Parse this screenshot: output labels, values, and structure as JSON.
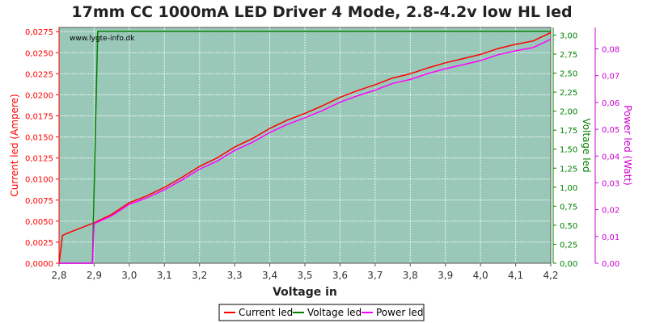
{
  "chart_data": {
    "type": "line",
    "title": "17mm CC 1000mA LED Driver 4 Mode, 2.8-4.2v low HL led",
    "watermark": "www.lygte-info.dk",
    "xlabel": "Voltage in",
    "ylabel_left": "Current led (Ampere)",
    "ylabel_right1": "Voltage led",
    "ylabel_right2": "Power led (Watt)",
    "xlim": [
      2.8,
      4.2
    ],
    "ylim_left": [
      0,
      0.028
    ],
    "ylim_right1": [
      0,
      3.1
    ],
    "ylim_right2": [
      0,
      0.088
    ],
    "x_ticks": [
      "2,8",
      "2,9",
      "3,0",
      "3,1",
      "3,2",
      "3,3",
      "3,4",
      "3,5",
      "3,6",
      "3,7",
      "3,8",
      "3,9",
      "4,0",
      "4,1",
      "4,2"
    ],
    "left_ticks": [
      "0,0000",
      "0,0025",
      "0,0050",
      "0,0075",
      "0,0100",
      "0,0125",
      "0,0150",
      "0,0175",
      "0,0200",
      "0,0225",
      "0,0250",
      "0,0275"
    ],
    "right1_ticks": [
      "0,00",
      "0,25",
      "0,50",
      "0,75",
      "1,00",
      "1,25",
      "1,50",
      "1,75",
      "2,00",
      "2,25",
      "2,50",
      "2,75",
      "3,00"
    ],
    "right2_ticks": [
      "0,00",
      "0,01",
      "0,02",
      "0,03",
      "0,04",
      "0,05",
      "0,06",
      "0,07",
      "0,08"
    ],
    "grid": true,
    "legend_position": "bottom-center",
    "colors": {
      "plot_bg": "#99c8b8",
      "grid": "#ffffff",
      "current": "#ff0000",
      "voltage": "#008000",
      "power": "#ff00ff",
      "left_axis": "#ff0000",
      "right1_axis": "#008000",
      "right2_axis": "#cc00cc"
    },
    "series": [
      {
        "name": "Current led",
        "axis": "left",
        "x": [
          2.8,
          2.81,
          2.82,
          2.85,
          2.9,
          2.95,
          3.0,
          3.05,
          3.1,
          3.15,
          3.2,
          3.25,
          3.3,
          3.35,
          3.4,
          3.45,
          3.5,
          3.55,
          3.6,
          3.65,
          3.7,
          3.75,
          3.8,
          3.85,
          3.9,
          3.95,
          4.0,
          4.05,
          4.1,
          4.15,
          4.2
        ],
        "y": [
          0.0,
          0.0033,
          0.0035,
          0.004,
          0.0048,
          0.0058,
          0.0072,
          0.008,
          0.009,
          0.0102,
          0.0115,
          0.0125,
          0.0138,
          0.0148,
          0.016,
          0.017,
          0.0178,
          0.0187,
          0.0197,
          0.0205,
          0.0212,
          0.022,
          0.0225,
          0.0232,
          0.0238,
          0.0243,
          0.0248,
          0.0255,
          0.026,
          0.0264,
          0.0274
        ]
      },
      {
        "name": "Voltage led",
        "axis": "right1",
        "x": [
          2.8,
          2.895,
          2.91,
          4.2
        ],
        "y": [
          0.0,
          0.0,
          3.05,
          3.05
        ]
      },
      {
        "name": "Power led",
        "axis": "right2",
        "x": [
          2.8,
          2.895,
          2.9,
          2.95,
          3.0,
          3.05,
          3.1,
          3.15,
          3.2,
          3.25,
          3.3,
          3.35,
          3.4,
          3.45,
          3.5,
          3.55,
          3.6,
          3.65,
          3.7,
          3.75,
          3.8,
          3.85,
          3.9,
          3.95,
          4.0,
          4.05,
          4.1,
          4.15,
          4.2
        ],
        "y": [
          0.0,
          0.0,
          0.0148,
          0.0177,
          0.022,
          0.0244,
          0.0274,
          0.0311,
          0.0351,
          0.0381,
          0.0421,
          0.0451,
          0.0488,
          0.0518,
          0.0543,
          0.057,
          0.0601,
          0.0625,
          0.0646,
          0.0671,
          0.0686,
          0.0708,
          0.0726,
          0.0741,
          0.0756,
          0.0778,
          0.0793,
          0.0805,
          0.0836
        ]
      }
    ]
  }
}
